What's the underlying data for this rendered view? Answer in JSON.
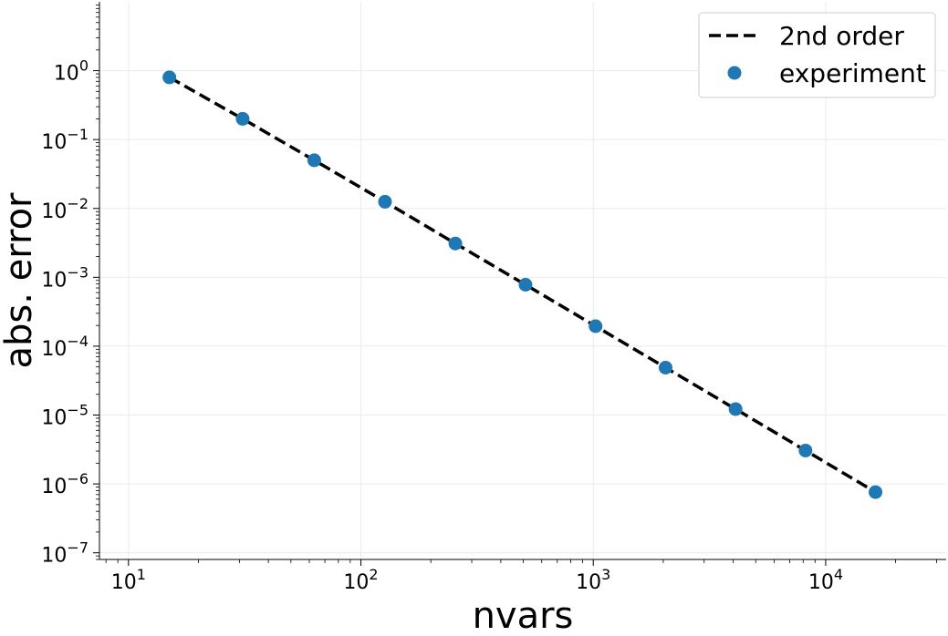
{
  "chart_data": {
    "type": "line",
    "xlabel": "nvars",
    "ylabel": "abs. error",
    "xscale": "log",
    "yscale": "log",
    "xlim": [
      7.5,
      33000
    ],
    "ylim": [
      8e-08,
      10
    ],
    "grid": true,
    "legend_position": "top-right",
    "x_ticks": [
      {
        "value": 10,
        "base": "10",
        "exp": "1"
      },
      {
        "value": 100,
        "base": "10",
        "exp": "2"
      },
      {
        "value": 1000,
        "base": "10",
        "exp": "3"
      },
      {
        "value": 10000,
        "base": "10",
        "exp": "4"
      }
    ],
    "y_ticks": [
      {
        "value": 1,
        "base": "10",
        "exp": "0"
      },
      {
        "value": 0.1,
        "base": "10",
        "exp": "−1"
      },
      {
        "value": 0.01,
        "base": "10",
        "exp": "−2"
      },
      {
        "value": 0.001,
        "base": "10",
        "exp": "−3"
      },
      {
        "value": 0.0001,
        "base": "10",
        "exp": "−4"
      },
      {
        "value": 1e-05,
        "base": "10",
        "exp": "−5"
      },
      {
        "value": 1e-06,
        "base": "10",
        "exp": "−6"
      },
      {
        "value": 1e-07,
        "base": "10",
        "exp": "−7"
      }
    ],
    "series": [
      {
        "name": "2nd order",
        "kind": "line",
        "style": "dashed",
        "color": "#000000",
        "x": [
          15,
          31,
          63,
          127,
          255,
          511,
          1023,
          2047,
          4095,
          8191,
          16383
        ],
        "y": [
          0.8,
          0.2,
          0.05,
          0.0125,
          0.0031,
          0.00078,
          0.000195,
          4.88e-05,
          1.22e-05,
          3.05e-06,
          7.6e-07
        ]
      },
      {
        "name": "experiment",
        "kind": "scatter",
        "color": "#1f77b4",
        "x": [
          15,
          31,
          63,
          127,
          255,
          511,
          1023,
          2047,
          4095,
          8191,
          16383
        ],
        "y": [
          0.8,
          0.2,
          0.05,
          0.0125,
          0.0031,
          0.00078,
          0.000195,
          4.88e-05,
          1.22e-05,
          3.05e-06,
          7.6e-07
        ]
      }
    ]
  }
}
